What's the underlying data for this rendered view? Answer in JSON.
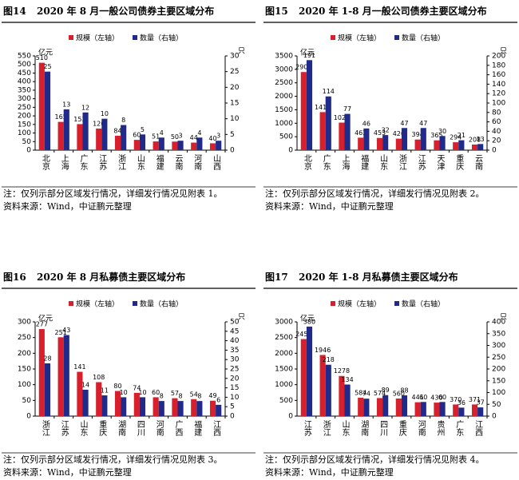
{
  "chart_data": [
    {
      "type": "bar",
      "label": "图14",
      "title": "2020 年 8 月一般公司债券主要区域分布",
      "y_unit": "亿元",
      "y2_unit": "只",
      "categories": [
        "北京",
        "上海",
        "广东",
        "江苏",
        "浙江",
        "山东",
        "福建",
        "云南",
        "河南",
        "山西"
      ],
      "series": [
        {
          "name": "规模（左轴）",
          "color": "#d7202b",
          "values": [
            510,
            165,
            152,
            126,
            84,
            60,
            51,
            50,
            44,
            40
          ]
        },
        {
          "name": "数量（右轴）",
          "color": "#1f2a8a",
          "axis": "y2",
          "values": [
            25,
            13,
            12,
            10,
            8,
            5,
            4,
            3,
            4,
            3
          ]
        }
      ],
      "ylim": [
        0,
        550
      ],
      "yticks": [
        0,
        50,
        100,
        150,
        200,
        250,
        300,
        350,
        400,
        450,
        500,
        550
      ],
      "y2lim": [
        0,
        30
      ],
      "y2ticks": [
        0,
        5,
        10,
        15,
        20,
        25,
        30
      ],
      "note": "注：仅列示部分区域发行情况，详细发行情况见附表 1。",
      "source": "资料来源：Wind，中证鹏元整理"
    },
    {
      "type": "bar",
      "label": "图15",
      "title": "2020 年 1-8 月一般公司债券主要区域分布",
      "y_unit": "亿元",
      "y2_unit": "只",
      "categories": [
        "北京",
        "广东",
        "上海",
        "福建",
        "山东",
        "浙江",
        "江苏",
        "天津",
        "重庆",
        "云南"
      ],
      "series": [
        {
          "name": "规模（左轴）",
          "color": "#d7202b",
          "values": [
            2901,
            1413,
            1023,
            462,
            453,
            426,
            394,
            365,
            294,
            208
          ]
        },
        {
          "name": "数量（右轴）",
          "color": "#1f2a8a",
          "axis": "y2",
          "values": [
            191,
            114,
            77,
            46,
            32,
            47,
            47,
            30,
            21,
            13
          ]
        }
      ],
      "ylim": [
        0,
        3500
      ],
      "yticks": [
        0,
        500,
        1000,
        1500,
        2000,
        2500,
        3000,
        3500
      ],
      "y2lim": [
        0,
        200
      ],
      "y2ticks": [
        0,
        20,
        40,
        60,
        80,
        100,
        120,
        140,
        160,
        180,
        200
      ],
      "note": "注：仅列示部分区域发行情况，详细发行情况见附表 2。",
      "source": "资料来源：Wind，中证鹏元整理"
    },
    {
      "type": "bar",
      "label": "图16",
      "title": "2020 年 8 月私募债主要区域分布",
      "y_unit": "亿元",
      "y2_unit": "只",
      "categories": [
        "浙江",
        "江苏",
        "山东",
        "重庆",
        "湖南",
        "四川",
        "河南",
        "广西",
        "福建",
        "江西"
      ],
      "series": [
        {
          "name": "规模（左轴）",
          "color": "#d7202b",
          "values": [
            277,
            251,
            141,
            108,
            80,
            74,
            60,
            57,
            54,
            49
          ]
        },
        {
          "name": "数量（右轴）",
          "color": "#1f2a8a",
          "axis": "y2",
          "values": [
            28,
            43,
            14,
            11,
            10,
            10,
            8,
            8,
            8,
            6
          ]
        }
      ],
      "ylim": [
        0,
        300
      ],
      "yticks": [
        0,
        50,
        100,
        150,
        200,
        250,
        300
      ],
      "y2lim": [
        0,
        50
      ],
      "y2ticks": [
        0,
        5,
        10,
        15,
        20,
        25,
        30,
        35,
        40,
        45,
        50
      ],
      "note": "注：仅列示部分区域发行情况，详细发行情况见附表 3。",
      "source": "资料来源：Wind，中证鹏元整理"
    },
    {
      "type": "bar",
      "label": "图17",
      "title": "2020 年 1-8 月私募债主要区域分布",
      "y_unit": "亿元",
      "y2_unit": "只",
      "categories": [
        "江苏",
        "浙江",
        "山东",
        "湖南",
        "四川",
        "重庆",
        "河南",
        "贵州",
        "广东",
        "江西"
      ],
      "series": [
        {
          "name": "规模（左轴）",
          "color": "#d7202b",
          "values": [
            2453,
            1946,
            1278,
            584,
            574,
            560,
            441,
            430,
            370,
            371
          ]
        },
        {
          "name": "数量（右轴）",
          "color": "#1f2a8a",
          "axis": "y2",
          "values": [
            380,
            218,
            134,
            74,
            89,
            88,
            60,
            60,
            36,
            37
          ]
        }
      ],
      "ylim": [
        0,
        3000
      ],
      "yticks": [
        0,
        500,
        1000,
        1500,
        2000,
        2500,
        3000
      ],
      "y2lim": [
        0,
        400
      ],
      "y2ticks": [
        0,
        50,
        100,
        150,
        200,
        250,
        300,
        350,
        400
      ],
      "note": "注：仅列示部分区域发行情况，详细发行情况见附表 4。",
      "source": "资料来源：Wind，中证鹏元整理"
    }
  ]
}
